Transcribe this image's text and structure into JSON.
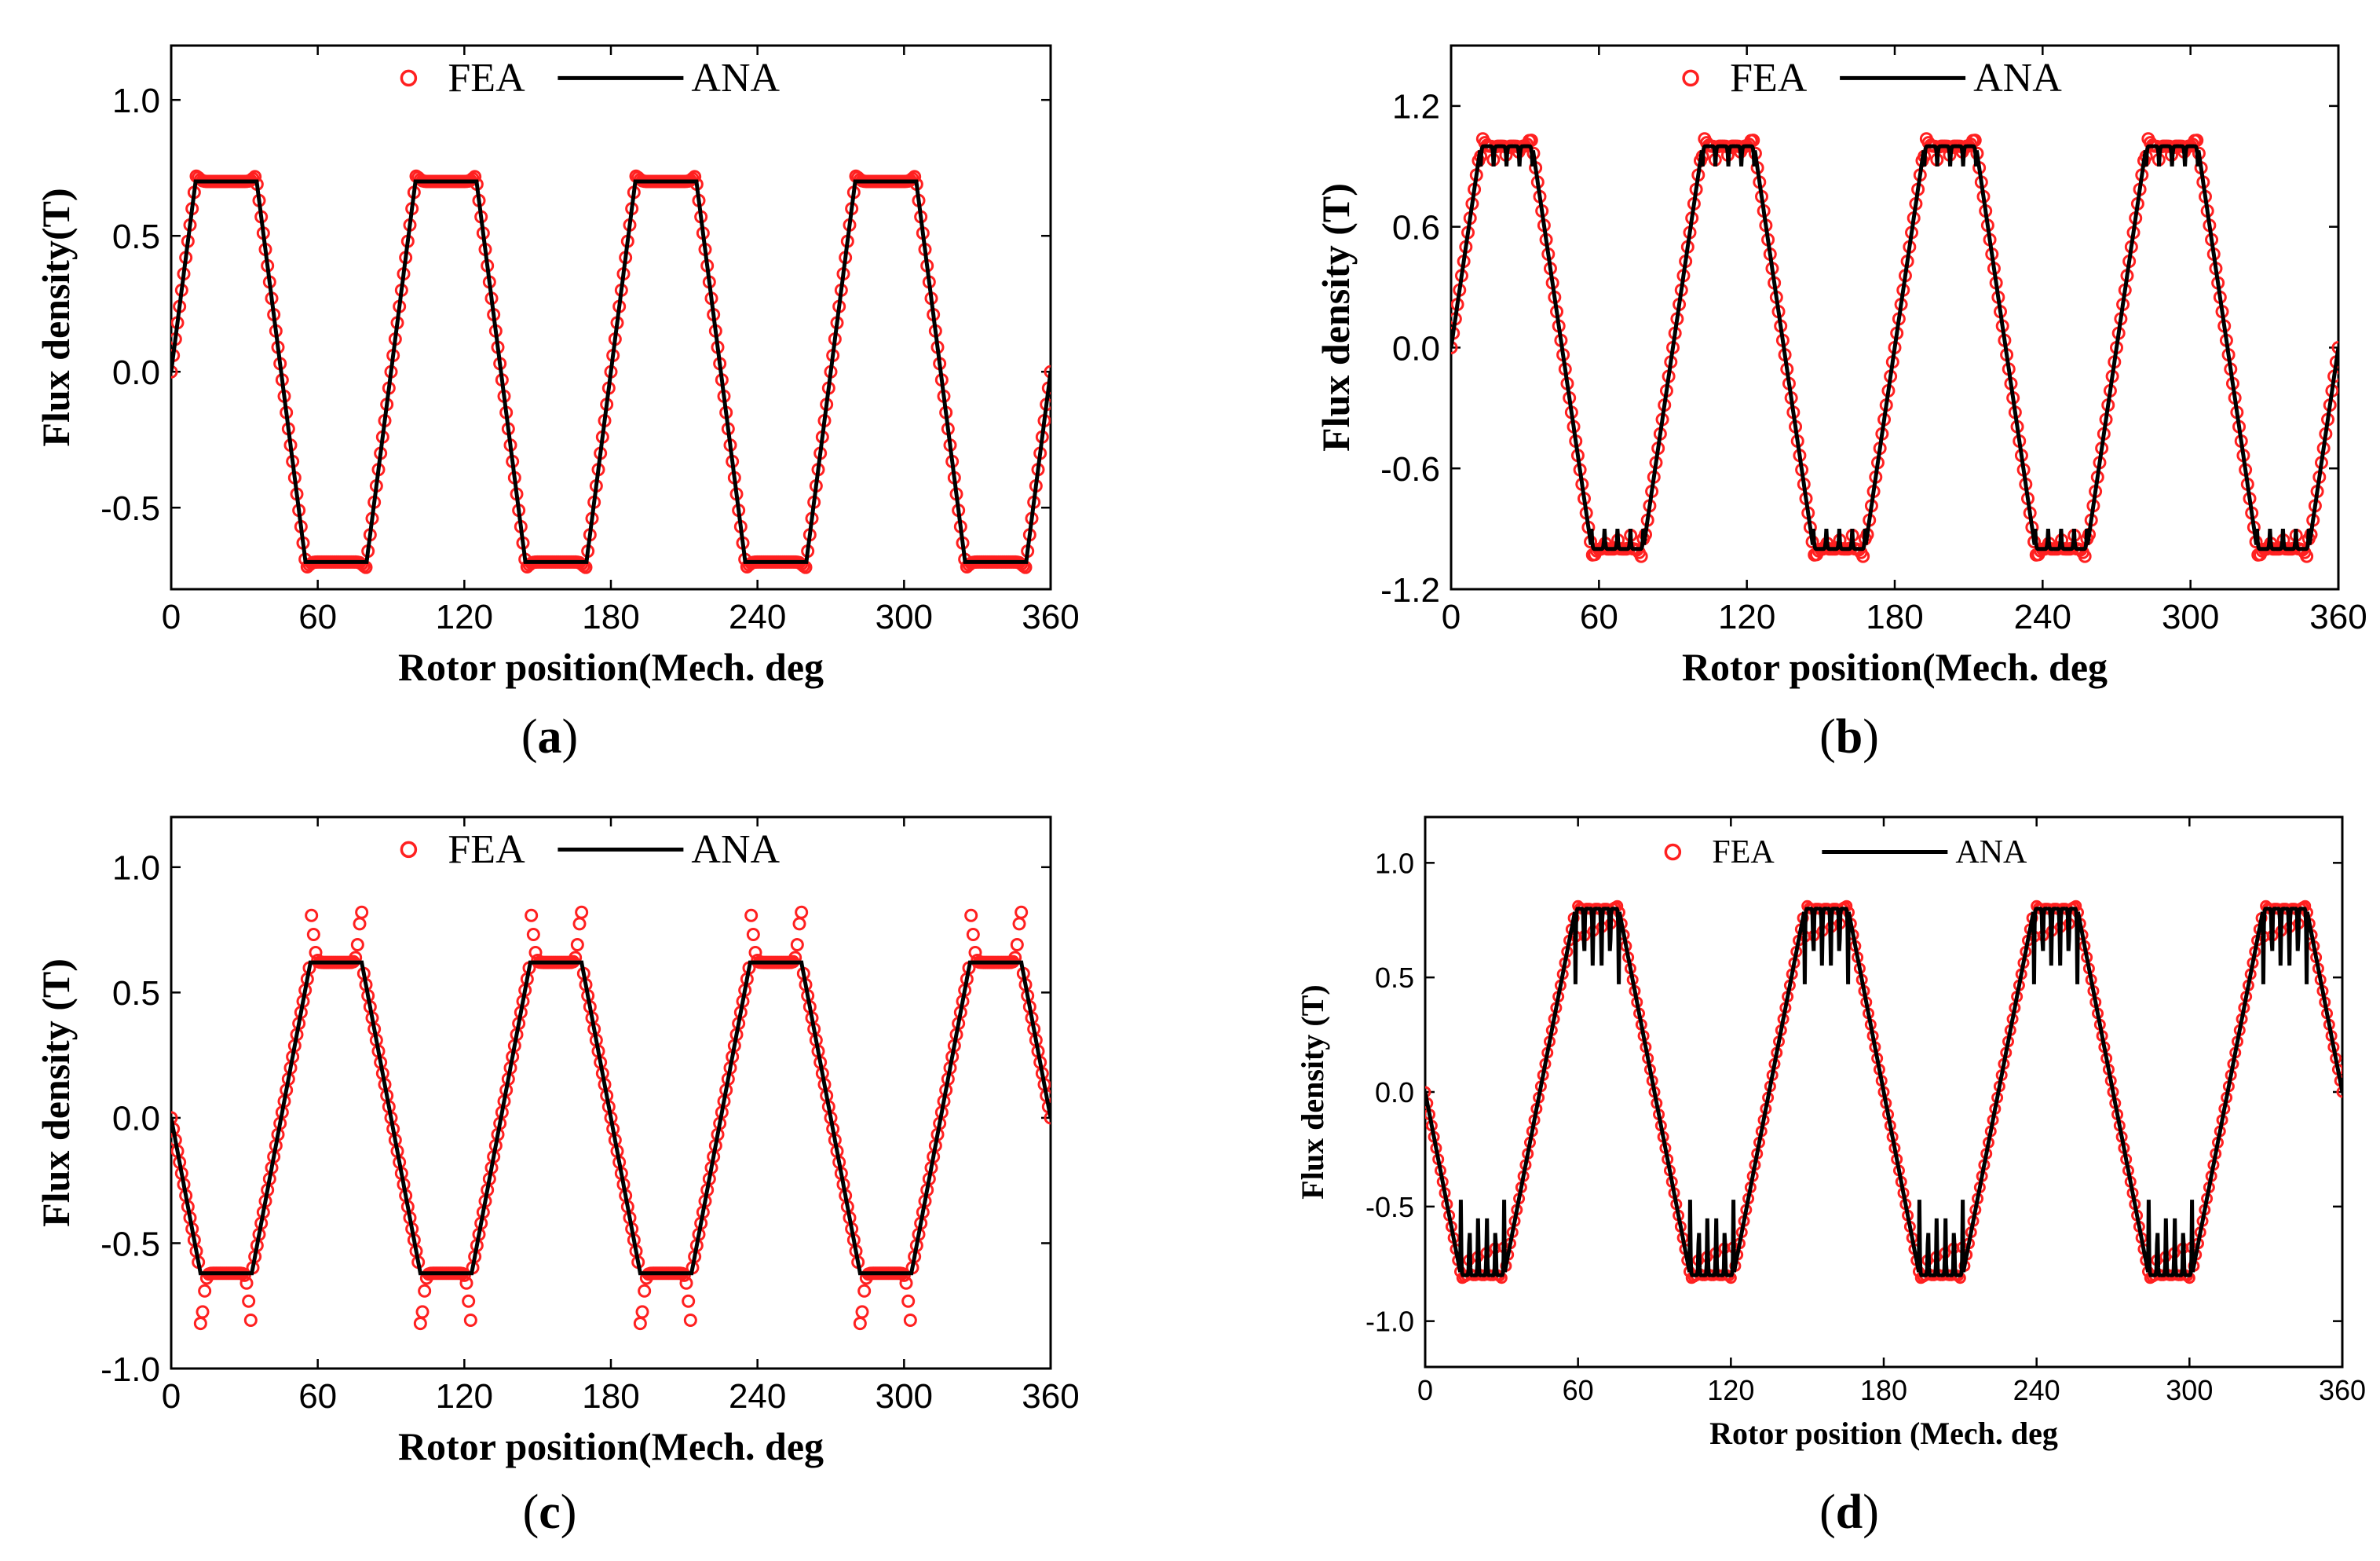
{
  "figure": {
    "colors": {
      "fea": "#ff2020",
      "ana": "#000000",
      "axis": "#000000"
    }
  },
  "chart_data": [
    {
      "id": "a",
      "type": "line",
      "caption": "a",
      "xlabel": "Rotor position(Mech. deg",
      "ylabel": "Flux density(T)",
      "xlim": [
        0,
        360
      ],
      "ylim": [
        -0.8,
        1.2
      ],
      "xticks": [
        0,
        60,
        120,
        180,
        240,
        300,
        360
      ],
      "yticks": [
        -0.5,
        0.0,
        0.5,
        1.0
      ],
      "ytick_labels": [
        "-0.5",
        "0.0",
        "0.5",
        "1.0"
      ],
      "legend": {
        "fea": "FEA",
        "ana": "ANA",
        "placement": "top-center"
      },
      "waveform": {
        "period": 90,
        "amplitude": 0.7,
        "ripple_amp": 0,
        "slot_ripples": 0,
        "tip_overshoot": 0.02,
        "rise_deg": 10,
        "flat_low": "pos_half"
      },
      "series": [
        {
          "name": "FEA",
          "marker": "circle",
          "note": "square wave, amplitude 0.7 T, period 90 deg"
        },
        {
          "name": "ANA",
          "marker": "line",
          "note": "square wave, amplitude 0.7 T, period 90 deg"
        }
      ]
    },
    {
      "id": "b",
      "type": "line",
      "caption": "b",
      "xlabel": "Rotor position(Mech. deg",
      "ylabel": "Flux density (T)",
      "xlim": [
        0,
        360
      ],
      "ylim": [
        -1.2,
        1.5
      ],
      "xticks": [
        0,
        60,
        120,
        180,
        240,
        300,
        360
      ],
      "yticks": [
        -1.2,
        -0.6,
        0.0,
        0.6,
        1.2
      ],
      "ytick_labels": [
        "-1.2",
        "-0.6",
        "0.0",
        "0.6",
        "1.2"
      ],
      "legend": {
        "fea": "FEA",
        "ana": "ANA",
        "placement": "top-center"
      },
      "waveform": {
        "period": 90,
        "amplitude": 1.0,
        "ripple_amp": 0.1,
        "slot_ripples": 4,
        "tip_overshoot": 0.05,
        "rise_deg": 12
      },
      "series": [
        {
          "name": "FEA",
          "marker": "circle",
          "note": "amplitude ~1.0 T with slotting ripples"
        },
        {
          "name": "ANA",
          "marker": "line",
          "note": "amplitude 1.0 T with slotting ripples"
        }
      ]
    },
    {
      "id": "c",
      "type": "line",
      "caption": "c",
      "xlabel": "Rotor position(Mech. deg",
      "ylabel": "Flux density (T)",
      "xlim": [
        0,
        360
      ],
      "ylim": [
        -1.0,
        1.2
      ],
      "xticks": [
        0,
        60,
        120,
        180,
        240,
        300,
        360
      ],
      "yticks": [
        -1.0,
        -0.5,
        0.0,
        0.5,
        1.0
      ],
      "ytick_labels": [
        "-1.0",
        "-0.5",
        "0.0",
        "0.5",
        "1.0"
      ],
      "legend": {
        "fea": "FEA",
        "ana": "ANA",
        "placement": "top-center"
      },
      "waveform": {
        "period": 90,
        "amplitude": 0.62,
        "ripple_amp": 0,
        "slot_ripples": 0,
        "tip_overshoot": 0.2,
        "rise_deg": 12,
        "phase": 45
      },
      "series": [
        {
          "name": "FEA",
          "marker": "circle",
          "note": "flat 0.62 T, edge peaks ~0.8 T"
        },
        {
          "name": "ANA",
          "marker": "line",
          "note": "flat 0.62 T"
        }
      ]
    },
    {
      "id": "d",
      "type": "line",
      "caption": "d",
      "xlabel": "Rotor position (Mech. deg",
      "ylabel": "Flux density (T)",
      "xlim": [
        0,
        360
      ],
      "ylim": [
        -1.2,
        1.2
      ],
      "xticks": [
        0,
        60,
        120,
        180,
        240,
        300,
        360
      ],
      "yticks": [
        -1.0,
        -0.5,
        0.0,
        0.5,
        1.0
      ],
      "ytick_labels": [
        "-1.0",
        "-0.5",
        "0.0",
        "0.5",
        "1.0"
      ],
      "legend": {
        "fea": "FEA",
        "ana": "ANA",
        "placement": "top-center"
      },
      "waveform": {
        "period": 90,
        "amplitude": 0.8,
        "ripple_amp": 0.33,
        "slot_ripples": 5,
        "tip_overshoot": 0.02,
        "rise_deg": 14,
        "phase": 45
      },
      "series": [
        {
          "name": "FEA",
          "marker": "circle",
          "note": "amplitude 0.8 T with deep slot dips"
        },
        {
          "name": "ANA",
          "marker": "line",
          "note": "amplitude 0.8 T with deep slot dips"
        }
      ]
    }
  ]
}
